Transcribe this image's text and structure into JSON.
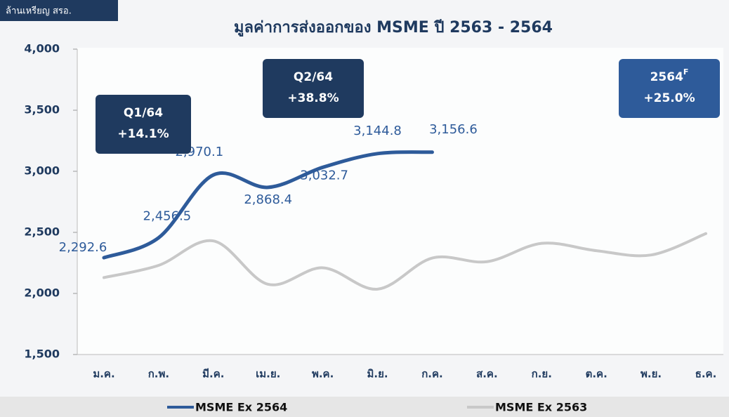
{
  "chart_data": {
    "type": "line",
    "title": "มูลค่าการส่งออกของ MSME ปี 2563 - 2564",
    "y_label": "ล้านเหรียญ สรอ.",
    "categories": [
      "ม.ค.",
      "ก.พ.",
      "มี.ค.",
      "เม.ย.",
      "พ.ค.",
      "มิ.ย.",
      "ก.ค.",
      "ส.ค.",
      "ก.ย.",
      "ต.ค.",
      "พ.ย.",
      "ธ.ค."
    ],
    "series": [
      {
        "name": "MSME Ex 2564",
        "color": "#2e5b9a",
        "values": [
          2292.6,
          2456.5,
          2970.1,
          2868.4,
          3032.7,
          3144.8,
          3156.6,
          null,
          null,
          null,
          null,
          null
        ],
        "value_labels": [
          "2,292.6",
          "2,456.5",
          "2,970.1",
          "2,868.4",
          "3,032.7",
          "3,144.8",
          "3,156.6",
          null,
          null,
          null,
          null,
          null
        ]
      },
      {
        "name": "MSME Ex 2563",
        "color": "#c8c8c8",
        "values": [
          2130,
          2230,
          2430,
          2075,
          2210,
          2035,
          2290,
          2260,
          2410,
          2350,
          2315,
          2490
        ]
      }
    ],
    "ylim": [
      1500,
      4000
    ],
    "yticks": [
      {
        "value": 1500,
        "label": "1,500"
      },
      {
        "value": 2000,
        "label": "2,000"
      },
      {
        "value": 2500,
        "label": "2,500"
      },
      {
        "value": 3000,
        "label": "3,000"
      },
      {
        "value": 3500,
        "label": "3,500"
      },
      {
        "value": 4000,
        "label": "4,000"
      }
    ],
    "grid": false,
    "legend": "bottom",
    "annotations": [
      {
        "title": "Q1/64",
        "value": "+14.1%"
      },
      {
        "title": "Q2/64",
        "value": "+38.8%"
      },
      {
        "title": "2564",
        "sup": "F",
        "value": "+25.0%"
      }
    ]
  }
}
